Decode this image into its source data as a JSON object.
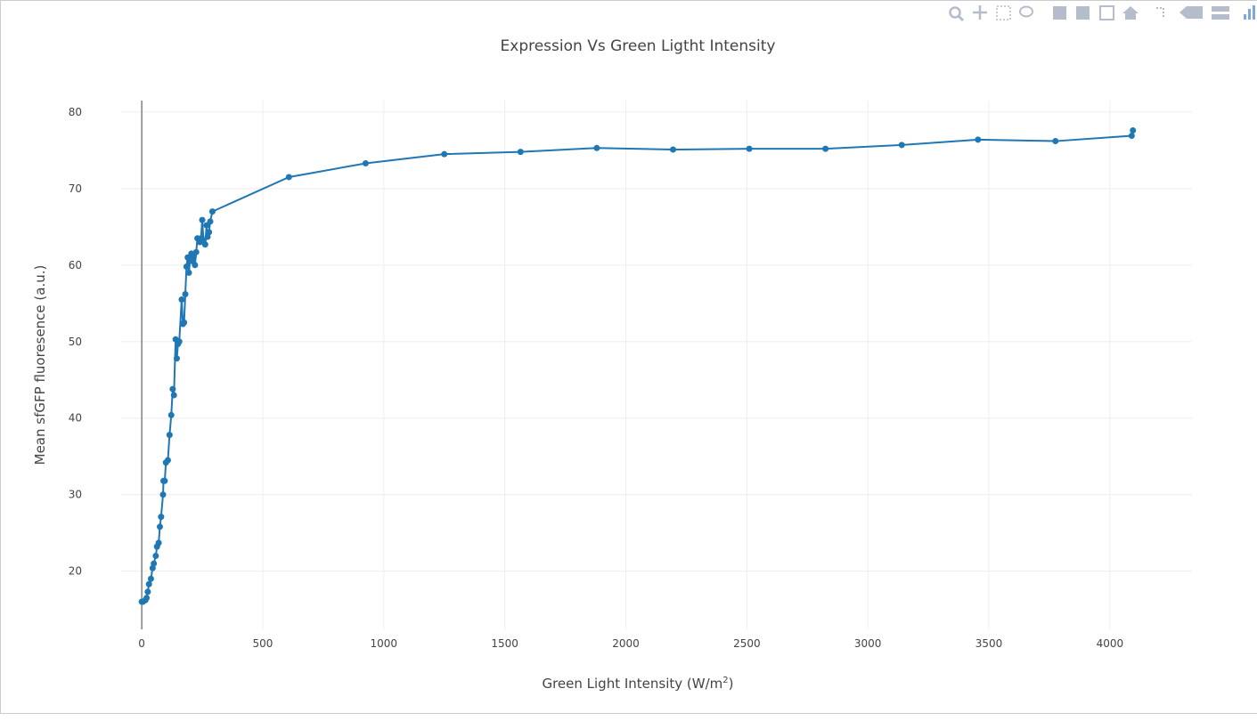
{
  "chart_data": {
    "type": "line",
    "title": "Expression Vs Green Ligtht Intensity",
    "x_label": [
      "Green Light  Intensity (W/m",
      "2",
      ")"
    ],
    "y_label": "Mean sfGFP fluoresence (a.u.)",
    "color": "#1f77b4",
    "markers": true,
    "grid": true,
    "zero_line": true,
    "x": [
      0,
      5,
      15,
      20,
      25,
      30,
      38,
      45,
      50,
      58,
      63,
      70,
      75,
      80,
      88,
      90,
      95,
      100,
      108,
      115,
      122,
      128,
      133,
      140,
      145,
      150,
      155,
      165,
      170,
      175,
      180,
      185,
      190,
      195,
      200,
      205,
      210,
      215,
      220,
      225,
      230,
      240,
      245,
      250,
      255,
      262,
      268,
      272,
      278,
      283,
      292,
      608,
      925,
      1250,
      1565,
      1880,
      2195,
      2510,
      2825,
      3140,
      3455,
      3775,
      4090,
      4095
    ],
    "values": [
      16,
      16,
      16.2,
      16.5,
      17.3,
      18.3,
      19,
      20.4,
      21,
      22,
      23.2,
      23.7,
      25.8,
      27.1,
      30,
      31.8,
      31.8,
      34.2,
      34.5,
      37.8,
      40.4,
      43.8,
      43,
      50.3,
      47.8,
      49.7,
      50,
      55.5,
      52.3,
      52.5,
      56.2,
      59.8,
      61,
      59,
      60.8,
      61.5,
      60.5,
      61.2,
      60,
      61.7,
      63.5,
      63,
      63.5,
      65.9,
      63.2,
      62.7,
      65.2,
      63.7,
      64.3,
      65.7,
      67,
      71.5,
      73.3,
      74.5,
      74.8,
      75.3,
      75.1,
      75.2,
      75.2,
      75.7,
      76.4,
      76.2,
      76.9,
      77.6
    ],
    "xlim": [
      -85,
      4339
    ],
    "ylim": [
      12.4,
      81.5
    ],
    "xticks": [
      0,
      500,
      1000,
      1500,
      2000,
      2500,
      3000,
      3500,
      4000
    ],
    "yticks": [
      20,
      30,
      40,
      50,
      60,
      70,
      80
    ]
  }
}
